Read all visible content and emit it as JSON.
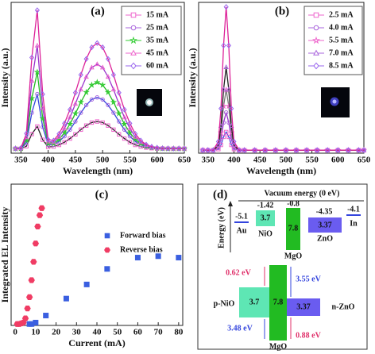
{
  "chart_data": [
    {
      "type": "line",
      "title": "(a)",
      "x_label": "Wavelength (nm)",
      "y_label": "Intensity (a.u.)",
      "x": [
        340,
        350,
        360,
        370,
        380,
        390,
        400,
        410,
        420,
        430,
        440,
        450,
        460,
        470,
        480,
        490,
        500,
        510,
        520,
        530,
        540,
        550,
        560,
        570,
        580,
        590,
        600,
        610,
        620,
        630,
        640,
        650
      ],
      "xlim": [
        332,
        650
      ],
      "xticks": [
        350,
        400,
        450,
        500,
        550,
        600,
        650
      ],
      "ylim": [
        0,
        100
      ],
      "legend": "upper right",
      "series": [
        {
          "name": "15 mA",
          "color": "#222222",
          "marker": "square",
          "marker_color": "#ee66cc",
          "values": [
            3,
            3,
            4.6,
            12.7,
            17.7,
            8.9,
            4.2,
            4.4,
            5.5,
            7.3,
            9.7,
            12.5,
            15.6,
            18.3,
            20.3,
            21,
            20.3,
            18.3,
            15.6,
            12.5,
            9.7,
            7.3,
            5.5,
            4.4,
            3.7,
            3.3,
            3.1,
            3.1,
            3,
            3,
            3,
            3
          ]
        },
        {
          "name": "25 mA",
          "color": "#3344dd",
          "marker": "circle",
          "marker_color": "#aa66dd",
          "values": [
            3,
            3.1,
            6.9,
            26.8,
            39.2,
            17.3,
            5.6,
            5.6,
            7.8,
            11.2,
            15.6,
            21,
            26.8,
            31.9,
            35.6,
            37,
            35.6,
            31.9,
            26.8,
            21,
            15.6,
            11.2,
            7.8,
            5.6,
            4.3,
            3.6,
            3.3,
            3.1,
            3,
            3,
            3,
            3
          ]
        },
        {
          "name": "35 mA",
          "color": "#22bb22",
          "marker": "star",
          "marker_color": "#33cc33",
          "values": [
            3,
            3.2,
            8.5,
            36.4,
            53.8,
            23,
            6.5,
            6.4,
            9.2,
            13.6,
            19.3,
            26.3,
            33.8,
            40.4,
            45.2,
            47,
            45.2,
            40.4,
            33.8,
            26.3,
            19.3,
            13.6,
            9.2,
            6.4,
            4.7,
            3.8,
            3.4,
            3.1,
            3,
            3,
            3,
            3
          ]
        },
        {
          "name": "45 mA",
          "color": "#9933cc",
          "marker": "triangle",
          "marker_color": "#ee66cc",
          "values": [
            3,
            3.3,
            10.5,
            48,
            71.3,
            29.9,
            7.7,
            7.3,
            10.8,
            16.4,
            23.7,
            32.7,
            42.2,
            50.6,
            56.8,
            59,
            56.8,
            50.6,
            42.2,
            32.7,
            23.7,
            16.4,
            10.8,
            7.3,
            5.2,
            4,
            3.4,
            3.2,
            3.1,
            3,
            3,
            3
          ]
        },
        {
          "name": "60 mA",
          "color": "#dd2299",
          "marker": "diamond",
          "marker_color": "#9966ee",
          "values": [
            3,
            3.4,
            13,
            63.4,
            94.8,
            39.1,
            9,
            8.4,
            12.8,
            19.8,
            28.9,
            40.1,
            52,
            62.5,
            70.2,
            73,
            70.2,
            62.5,
            52,
            40.1,
            28.9,
            19.8,
            12.8,
            8.4,
            5.7,
            4.3,
            3.6,
            3.2,
            3.1,
            3,
            3,
            3
          ]
        }
      ]
    },
    {
      "type": "line",
      "title": "(b)",
      "x_label": "Wavelength (nm)",
      "y_label": "Intensity (a.u.)",
      "x": [
        340,
        350,
        360,
        370,
        375,
        380,
        385,
        390,
        395,
        400,
        410,
        420,
        440,
        460,
        480,
        500,
        520,
        540,
        560,
        580,
        600,
        620,
        640,
        650
      ],
      "xlim": [
        332,
        650
      ],
      "xticks": [
        350,
        400,
        450,
        500,
        550,
        600,
        650
      ],
      "ylim": [
        0,
        100
      ],
      "legend": "upper right",
      "series": [
        {
          "name": "2.5 mA",
          "color": "#3344dd",
          "marker": "square",
          "marker_color": "#ee66cc",
          "values": [
            2,
            2,
            2,
            2.7,
            5.5,
            10.8,
            14,
            10.8,
            5.5,
            2.7,
            2,
            2,
            2,
            2,
            2,
            2,
            2,
            2,
            2,
            2,
            2,
            2,
            2,
            2
          ]
        },
        {
          "name": "4.0 mA",
          "color": "#9933cc",
          "marker": "circle",
          "marker_color": "#aa66dd",
          "values": [
            2,
            2,
            2,
            3.5,
            9.3,
            20.3,
            27,
            20.3,
            9.3,
            3.5,
            2,
            2,
            2,
            2,
            2,
            2,
            2,
            2,
            2,
            2,
            2,
            2,
            2,
            2
          ]
        },
        {
          "name": "5.5 mA",
          "color": "#777777",
          "marker": "star",
          "marker_color": "#ee66cc",
          "values": [
            2,
            2,
            2,
            4.4,
            13.6,
            31.2,
            42,
            31.2,
            13.6,
            4.4,
            2,
            2,
            2,
            2,
            2,
            2,
            2,
            2,
            2,
            2,
            2,
            2,
            2,
            2
          ]
        },
        {
          "name": "7.0 mA",
          "color": "#222222",
          "marker": "triangle",
          "marker_color": "#aa66dd",
          "values": [
            2,
            2,
            2,
            5.3,
            18,
            42.2,
            57,
            42.2,
            18,
            5.3,
            2,
            2,
            2,
            2,
            2,
            2,
            2,
            2,
            2,
            2,
            2,
            2,
            2,
            2
          ]
        },
        {
          "name": "8.5 mA",
          "color": "#dd2299",
          "marker": "diamond",
          "marker_color": "#9966ee",
          "values": [
            2,
            2,
            2,
            7.7,
            29.6,
            71.4,
            97,
            71.4,
            29.6,
            7.7,
            2,
            2,
            2,
            2,
            2,
            2,
            2,
            2,
            2,
            2,
            2,
            2,
            2,
            2
          ]
        }
      ]
    },
    {
      "type": "scatter",
      "title": "(c)",
      "x_label": "Current (mA)",
      "y_label": "Integrated EL Intensity",
      "xlim": [
        -2,
        82
      ],
      "xticks": [
        0,
        10,
        20,
        30,
        40,
        50,
        60,
        70,
        80
      ],
      "ylim": [
        0,
        100
      ],
      "legend": "center right",
      "series": [
        {
          "name": "Forward bias",
          "color": "#3a5fe0",
          "marker": "square",
          "x": [
            7,
            8,
            10,
            15,
            25,
            35,
            45,
            60,
            70,
            80
          ],
          "values": [
            1,
            1,
            2,
            7,
            19,
            29,
            40,
            48,
            49,
            48
          ]
        },
        {
          "name": "Reverse bias",
          "color": "#f03c64",
          "marker": "hexagon",
          "x": [
            1,
            2,
            3,
            4,
            5,
            6,
            7,
            8,
            9,
            10,
            11,
            12,
            13
          ],
          "values": [
            1,
            1,
            1.5,
            2,
            5,
            12,
            20,
            32,
            45,
            58,
            70,
            78,
            83
          ]
        }
      ]
    }
  ],
  "diagram": {
    "title": "(d)",
    "vacuum_label": "Vacuum energy (0 eV)",
    "energy_label": "Energy (eV)",
    "levels": [
      {
        "material": "Au",
        "value": "-5.1"
      },
      {
        "material": "NiO",
        "value": "-1.42",
        "gap": "3.7"
      },
      {
        "material": "MgO",
        "value": "-0.8",
        "gap": "7.8"
      },
      {
        "material": "ZnO",
        "value": "-4.35",
        "gap": "3.37"
      },
      {
        "material": "In",
        "value": "-4.1"
      }
    ],
    "junction": {
      "left": "p-NiO",
      "left_gap": "3.7",
      "middle": "MgO",
      "middle_gap": "7.8",
      "right": "n-ZnO",
      "right_gap": "3.37",
      "offsets": [
        "0.62 eV",
        "3.55 eV",
        "3.48 eV",
        "0.88 eV"
      ]
    }
  }
}
